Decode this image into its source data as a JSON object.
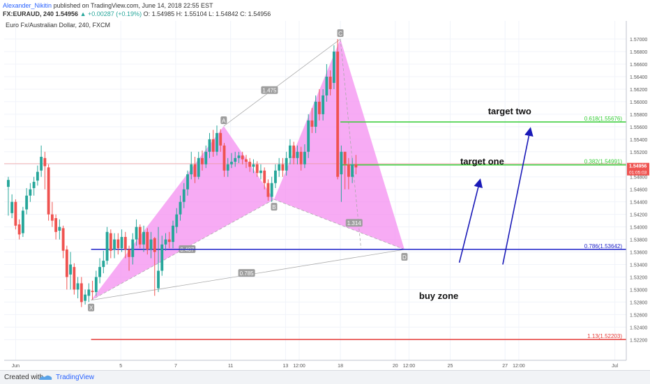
{
  "header": {
    "author": "Alexander_Nikitin",
    "published": "published on TradingView.com, June 14, 2018 22:55 EST",
    "symbol": "FX:EURAUD, 240",
    "quote": "1.54956",
    "change": "▲ +0.00287 (+0.19%)",
    "ohlc": "O: 1.54985 H: 1.55104 L: 1.54842 C: 1.54956"
  },
  "footer": {
    "created": "Created with",
    "brand": "TradingView"
  },
  "colors": {
    "up": "#26a69a",
    "down": "#ef5350",
    "pattern_fill": "#f48ff0",
    "green_level": "#33cc33",
    "blue_level": "#1e22c8",
    "red_level": "#e53935",
    "arrow": "#1a1ab8",
    "last_price_bg": "#ef5350"
  },
  "chart_data": {
    "type": "candlestick",
    "title": "Euro Fx/Australian Dollar, 240, FXCM",
    "ylim": [
      1.5187,
      1.5729
    ],
    "y_ticks": [
      "1.57000",
      "1.56800",
      "1.56600",
      "1.56400",
      "1.56200",
      "1.56000",
      "1.55800",
      "1.55600",
      "1.55400",
      "1.55200",
      "1.55000",
      "1.54800",
      "1.54600",
      "1.54400",
      "1.54200",
      "1.54000",
      "1.53800",
      "1.53600",
      "1.53400",
      "1.53200",
      "1.53000",
      "1.52800",
      "1.52600",
      "1.52400",
      "1.52200"
    ],
    "x_ticks": [
      {
        "label": "Jun",
        "t": -18
      },
      {
        "label": "5",
        "t": 5
      },
      {
        "label": "7",
        "t": 17
      },
      {
        "label": "11",
        "t": 29
      },
      {
        "label": "13",
        "t": 41
      },
      {
        "label": "12:00",
        "t": 44
      },
      {
        "label": "18",
        "t": 53
      },
      {
        "label": "20",
        "t": 65
      },
      {
        "label": "12:00",
        "t": 68
      },
      {
        "label": "25",
        "t": 77
      },
      {
        "label": "27",
        "t": 89
      },
      {
        "label": "12:00",
        "t": 92
      },
      {
        "label": "Jul",
        "t": 113
      }
    ],
    "last_price": "1.54956",
    "countdown": "01:05:03",
    "candles": [
      [
        -19.6,
        1.5475,
        1.5464,
        1.548,
        1.5418,
        1
      ],
      [
        -18.8,
        1.5422,
        1.544,
        1.5452,
        1.5414,
        1
      ],
      [
        -18.0,
        1.544,
        1.5402,
        1.5444,
        1.5396,
        -1
      ],
      [
        -17.2,
        1.5404,
        1.5388,
        1.5412,
        1.538,
        -1
      ],
      [
        -16.4,
        1.539,
        1.5426,
        1.5432,
        1.5384,
        1
      ],
      [
        -15.6,
        1.5428,
        1.545,
        1.5462,
        1.542,
        1
      ],
      [
        -14.8,
        1.545,
        1.546,
        1.547,
        1.544,
        1
      ],
      [
        -14.0,
        1.5462,
        1.5472,
        1.548,
        1.545,
        1
      ],
      [
        -13.2,
        1.5474,
        1.5488,
        1.5498,
        1.5466,
        1
      ],
      [
        -12.4,
        1.549,
        1.5512,
        1.553,
        1.548,
        1
      ],
      [
        -11.6,
        1.551,
        1.5497,
        1.552,
        1.546,
        -1
      ],
      [
        -10.8,
        1.5495,
        1.542,
        1.55,
        1.541,
        -1
      ],
      [
        -10.0,
        1.542,
        1.541,
        1.544,
        1.54,
        -1
      ],
      [
        -9.2,
        1.5414,
        1.5392,
        1.542,
        1.538,
        -1
      ],
      [
        -8.4,
        1.5394,
        1.54,
        1.5412,
        1.538,
        1
      ],
      [
        -7.6,
        1.5398,
        1.5362,
        1.5402,
        1.535,
        -1
      ],
      [
        -6.8,
        1.5364,
        1.532,
        1.537,
        1.53,
        -1
      ],
      [
        -6.0,
        1.5324,
        1.534,
        1.536,
        1.53,
        1
      ],
      [
        -5.2,
        1.5336,
        1.53,
        1.5342,
        1.5292,
        -1
      ],
      [
        -4.4,
        1.53,
        1.531,
        1.532,
        1.5286,
        1
      ],
      [
        -3.6,
        1.531,
        1.528,
        1.532,
        1.5272,
        -1
      ],
      [
        -2.8,
        1.5282,
        1.5292,
        1.53,
        1.5276,
        1
      ],
      [
        -2.0,
        1.529,
        1.53,
        1.531,
        1.528,
        1
      ],
      [
        -1.2,
        1.5298,
        1.5296,
        1.5314,
        1.5284,
        -1
      ],
      [
        -0.4,
        1.5296,
        1.532,
        1.533,
        1.529,
        1
      ],
      [
        0.4,
        1.532,
        1.5336,
        1.535,
        1.531,
        1
      ],
      [
        1.2,
        1.5336,
        1.5346,
        1.5362,
        1.5326,
        1
      ],
      [
        2.0,
        1.5346,
        1.5392,
        1.54,
        1.534,
        1
      ],
      [
        2.8,
        1.539,
        1.5362,
        1.5396,
        1.535,
        -1
      ],
      [
        3.6,
        1.5364,
        1.538,
        1.539,
        1.535,
        1
      ],
      [
        4.4,
        1.538,
        1.5366,
        1.539,
        1.5356,
        -1
      ],
      [
        5.2,
        1.5366,
        1.5384,
        1.5396,
        1.536,
        1
      ],
      [
        6.0,
        1.5384,
        1.5364,
        1.5392,
        1.535,
        -1
      ],
      [
        6.8,
        1.5364,
        1.5352,
        1.537,
        1.533,
        -1
      ],
      [
        7.6,
        1.5352,
        1.538,
        1.539,
        1.534,
        1
      ],
      [
        8.4,
        1.538,
        1.54,
        1.5412,
        1.537,
        1
      ],
      [
        9.2,
        1.54,
        1.5372,
        1.5404,
        1.5366,
        -1
      ],
      [
        10.0,
        1.5372,
        1.5392,
        1.5402,
        1.536,
        1
      ],
      [
        10.8,
        1.5392,
        1.5364,
        1.5398,
        1.5356,
        -1
      ],
      [
        11.6,
        1.5364,
        1.538,
        1.5392,
        1.535,
        1
      ],
      [
        12.4,
        1.5382,
        1.536,
        1.5384,
        1.529,
        -1
      ],
      [
        13.2,
        1.5302,
        1.533,
        1.54,
        1.5296,
        1
      ],
      [
        14.0,
        1.533,
        1.5372,
        1.5386,
        1.5322,
        1
      ],
      [
        14.8,
        1.5372,
        1.538,
        1.539,
        1.5362,
        1
      ],
      [
        15.6,
        1.538,
        1.5376,
        1.5392,
        1.5366,
        -1
      ],
      [
        16.4,
        1.5376,
        1.5402,
        1.541,
        1.5366,
        1
      ],
      [
        17.2,
        1.54,
        1.542,
        1.543,
        1.539,
        1
      ],
      [
        18.0,
        1.542,
        1.544,
        1.545,
        1.541,
        1
      ],
      [
        18.8,
        1.544,
        1.546,
        1.547,
        1.543,
        1
      ],
      [
        19.6,
        1.546,
        1.5484,
        1.549,
        1.545,
        1
      ],
      [
        20.4,
        1.5484,
        1.55,
        1.552,
        1.5476,
        1
      ],
      [
        21.2,
        1.55,
        1.548,
        1.5512,
        1.547,
        -1
      ],
      [
        22.0,
        1.548,
        1.551,
        1.552,
        1.5476,
        1
      ],
      [
        22.8,
        1.551,
        1.55,
        1.5522,
        1.549,
        -1
      ],
      [
        23.6,
        1.55,
        1.552,
        1.553,
        1.5494,
        1
      ],
      [
        24.4,
        1.552,
        1.554,
        1.555,
        1.551,
        1
      ],
      [
        25.2,
        1.554,
        1.552,
        1.5555,
        1.5512,
        -1
      ],
      [
        26.0,
        1.552,
        1.555,
        1.5562,
        1.5514,
        1
      ],
      [
        26.8,
        1.555,
        1.553,
        1.5556,
        1.552,
        -1
      ],
      [
        27.6,
        1.553,
        1.549,
        1.5534,
        1.548,
        -1
      ],
      [
        28.4,
        1.549,
        1.55,
        1.551,
        1.548,
        1
      ],
      [
        29.2,
        1.55,
        1.5504,
        1.5518,
        1.5494,
        1
      ],
      [
        30.0,
        1.5504,
        1.551,
        1.552,
        1.5496,
        1
      ],
      [
        30.8,
        1.551,
        1.5514,
        1.552,
        1.5502,
        1
      ],
      [
        31.6,
        1.5514,
        1.5508,
        1.552,
        1.55,
        -1
      ],
      [
        32.4,
        1.5508,
        1.5504,
        1.5515,
        1.5494,
        -1
      ],
      [
        33.2,
        1.5504,
        1.5496,
        1.551,
        1.5488,
        -1
      ],
      [
        34.0,
        1.5496,
        1.55,
        1.5508,
        1.5486,
        1
      ],
      [
        34.8,
        1.55,
        1.5486,
        1.5505,
        1.548,
        -1
      ],
      [
        35.6,
        1.5486,
        1.549,
        1.55,
        1.5476,
        1
      ],
      [
        36.4,
        1.549,
        1.547,
        1.5495,
        1.546,
        -1
      ],
      [
        37.2,
        1.547,
        1.5448,
        1.5476,
        1.5442,
        -1
      ],
      [
        38.0,
        1.5448,
        1.547,
        1.548,
        1.544,
        1
      ],
      [
        38.8,
        1.547,
        1.549,
        1.55,
        1.5462,
        1
      ],
      [
        39.6,
        1.549,
        1.55,
        1.551,
        1.548,
        1
      ],
      [
        40.4,
        1.55,
        1.549,
        1.551,
        1.548,
        -1
      ],
      [
        41.2,
        1.549,
        1.551,
        1.552,
        1.5482,
        1
      ],
      [
        42.0,
        1.551,
        1.553,
        1.554,
        1.55,
        1
      ],
      [
        42.8,
        1.553,
        1.551,
        1.5536,
        1.55,
        -1
      ],
      [
        43.6,
        1.551,
        1.552,
        1.553,
        1.55,
        1
      ],
      [
        44.4,
        1.552,
        1.55,
        1.5528,
        1.549,
        -1
      ],
      [
        45.2,
        1.55,
        1.552,
        1.5532,
        1.5494,
        1
      ],
      [
        46.0,
        1.552,
        1.557,
        1.558,
        1.551,
        1
      ],
      [
        46.8,
        1.557,
        1.556,
        1.559,
        1.555,
        -1
      ],
      [
        47.6,
        1.556,
        1.56,
        1.561,
        1.555,
        1
      ],
      [
        48.4,
        1.56,
        1.558,
        1.562,
        1.557,
        -1
      ],
      [
        49.2,
        1.558,
        1.561,
        1.562,
        1.557,
        1
      ],
      [
        50.0,
        1.561,
        1.564,
        1.566,
        1.56,
        1
      ],
      [
        50.8,
        1.564,
        1.562,
        1.565,
        1.561,
        -1
      ],
      [
        51.6,
        1.563,
        1.568,
        1.569,
        1.562,
        1
      ],
      [
        52.4,
        1.568,
        1.548,
        1.57,
        1.5476,
        -1
      ],
      [
        53.2,
        1.5484,
        1.552,
        1.553,
        1.544,
        1
      ],
      [
        54.0,
        1.552,
        1.55,
        1.552,
        1.546,
        -1
      ],
      [
        54.8,
        1.55,
        1.548,
        1.551,
        1.546,
        -1
      ],
      [
        55.6,
        1.548,
        1.55,
        1.551,
        1.547,
        1
      ],
      [
        56.4,
        1.55,
        1.5495,
        1.5515,
        1.5484,
        -1
      ]
    ],
    "harmonic": {
      "points": [
        {
          "label": "X",
          "t": -1.5,
          "p": 1.5283
        },
        {
          "label": "A",
          "t": 27.5,
          "p": 1.5561
        },
        {
          "label": "B",
          "t": 38.5,
          "p": 1.5444
        },
        {
          "label": "C",
          "t": 53.0,
          "p": 1.57
        },
        {
          "label": "D",
          "t": 67.0,
          "p": 1.5364
        }
      ],
      "ratios": [
        {
          "label": "1.475",
          "t": 37.5,
          "p": 1.5618
        },
        {
          "label": "0.407",
          "t": 19.5,
          "p": 1.5364
        },
        {
          "label": "0.785",
          "t": 32.5,
          "p": 1.5326
        },
        {
          "label": "1.314",
          "t": 56.0,
          "p": 1.5406
        }
      ]
    },
    "levels": [
      {
        "label": "0.618(1.55676)",
        "price": 1.55676,
        "start_t": 53.0,
        "color": "green_level"
      },
      {
        "label": "0.382(1.54991)",
        "price": 1.54991,
        "start_t": 53.0,
        "color": "green_level"
      },
      {
        "label": "0.786(1.53642)",
        "price": 1.53642,
        "start_t": -1.5,
        "color": "blue_level"
      },
      {
        "label": "1.13(1.52203)",
        "price": 1.52203,
        "start_t": -1.5,
        "color": "red_level"
      }
    ],
    "reference_line": {
      "price": 1.5501
    },
    "annotations": [
      {
        "text": "target two",
        "t": 90.0,
        "p": 1.558
      },
      {
        "text": "target one",
        "t": 84.0,
        "p": 1.55
      },
      {
        "text": "buy zone",
        "t": 74.5,
        "p": 1.5285
      }
    ],
    "arrows": [
      {
        "from_t": 79.0,
        "from_p": 1.5343,
        "to_t": 83.5,
        "to_p": 1.5474
      },
      {
        "from_t": 88.5,
        "from_p": 1.534,
        "to_t": 94.5,
        "to_p": 1.5556
      }
    ]
  }
}
